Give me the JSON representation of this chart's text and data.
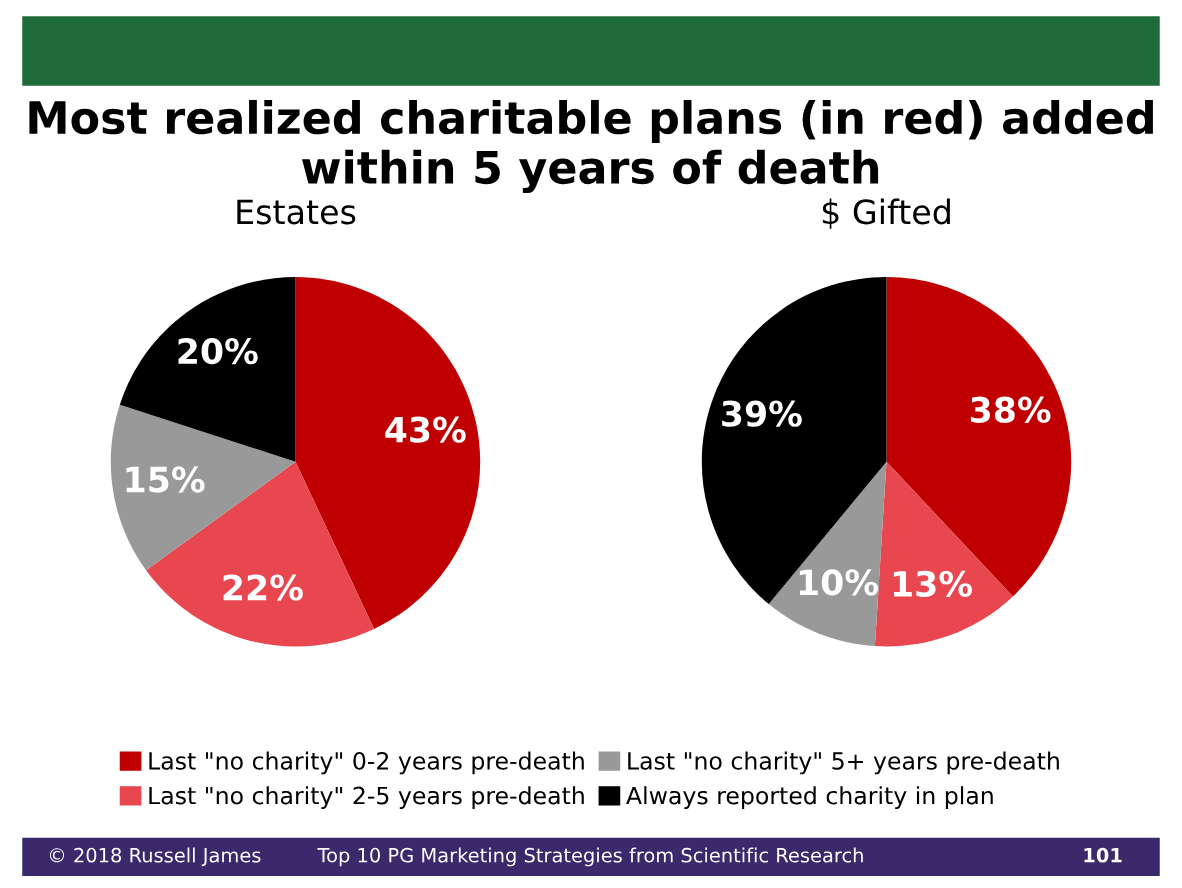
{
  "chart_data": [
    {
      "type": "pie",
      "title": "Estates",
      "annotations": [
        "Most realized charitable plans (in red) added within 5 years of death"
      ],
      "categories": [
        "Last \"no charity\" 0-2 years pre-death",
        "Last \"no charity\" 2-5 years pre-death",
        "Last \"no charity\" 5+ years pre-death",
        "Always reported charity in plan"
      ],
      "values": [
        43,
        22,
        15,
        20
      ],
      "value_labels": [
        "43%",
        "22%",
        "15%",
        "20%"
      ],
      "colors": [
        "#c00000",
        "#e8474f",
        "#999999",
        "#000000"
      ],
      "legend": "bottom"
    },
    {
      "type": "pie",
      "title": "$ Gifted",
      "annotations": [
        "© 2018 Russell James",
        "Top 10 PG Marketing Strategies from Scientific Research",
        "101"
      ],
      "categories": [
        null,
        null,
        null,
        null
      ],
      "values": [
        38,
        13,
        10,
        39
      ],
      "value_labels": [
        "38%",
        "13%",
        "10%",
        "39%"
      ],
      "colors": [
        "#c00000",
        "#e8474f",
        "#999999",
        "#000000"
      ],
      "legend": false
    }
  ]
}
